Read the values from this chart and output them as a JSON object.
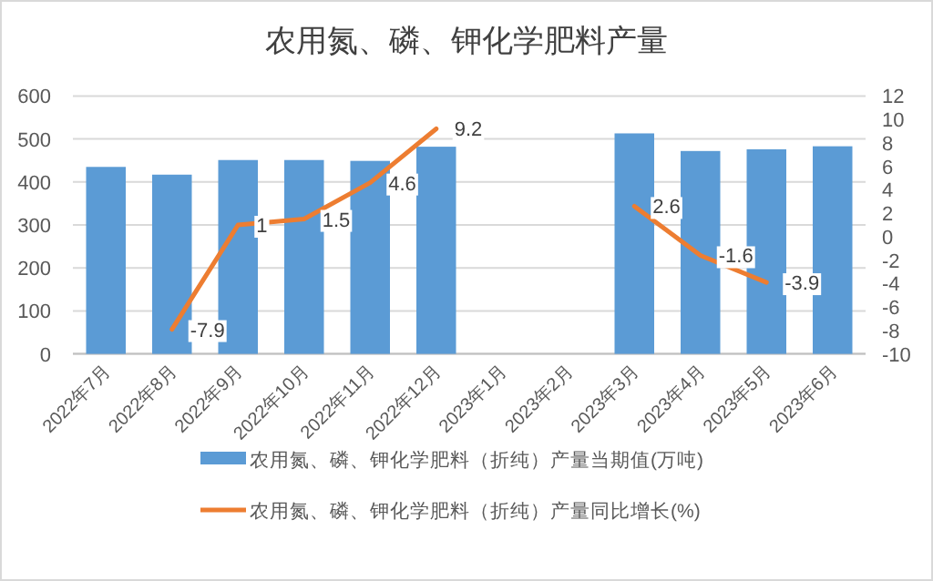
{
  "chart_data": {
    "type": "bar",
    "title": "农用氮、磷、钾化学肥料产量",
    "categories": [
      "2022年7月",
      "2022年8月",
      "2022年9月",
      "2022年10月",
      "2022年11月",
      "2022年12月",
      "2023年1月",
      "2023年2月",
      "2023年3月",
      "2023年4月",
      "2023年5月",
      "2023年6月"
    ],
    "series": [
      {
        "name": "农用氮、磷、钾化学肥料（折纯）产量当期值(万吨)",
        "color": "#5b9bd5",
        "values": [
          435,
          417,
          451,
          451,
          449,
          482,
          null,
          null,
          513,
          472,
          476,
          483
        ]
      },
      {
        "name": "农用氮、磷、钾化学肥料（折纯）产量同比增长(%)",
        "type": "line",
        "axis": "y2",
        "color": "#ed7d31",
        "data_labels": true,
        "values": [
          null,
          -7.9,
          1,
          1.5,
          4.6,
          9.2,
          null,
          null,
          2.6,
          -1.6,
          -3.9,
          null
        ]
      }
    ],
    "ylim": [
      0,
      600
    ],
    "yticks": [
      0,
      100,
      200,
      300,
      400,
      500,
      600
    ],
    "y2lim": [
      -10,
      12
    ],
    "y2ticks": [
      -10,
      -8,
      -6,
      -4,
      -2,
      0,
      2,
      4,
      6,
      8,
      10,
      12
    ],
    "grid": "y",
    "legend": "bottom",
    "marker": "none",
    "line_style": "solid"
  }
}
